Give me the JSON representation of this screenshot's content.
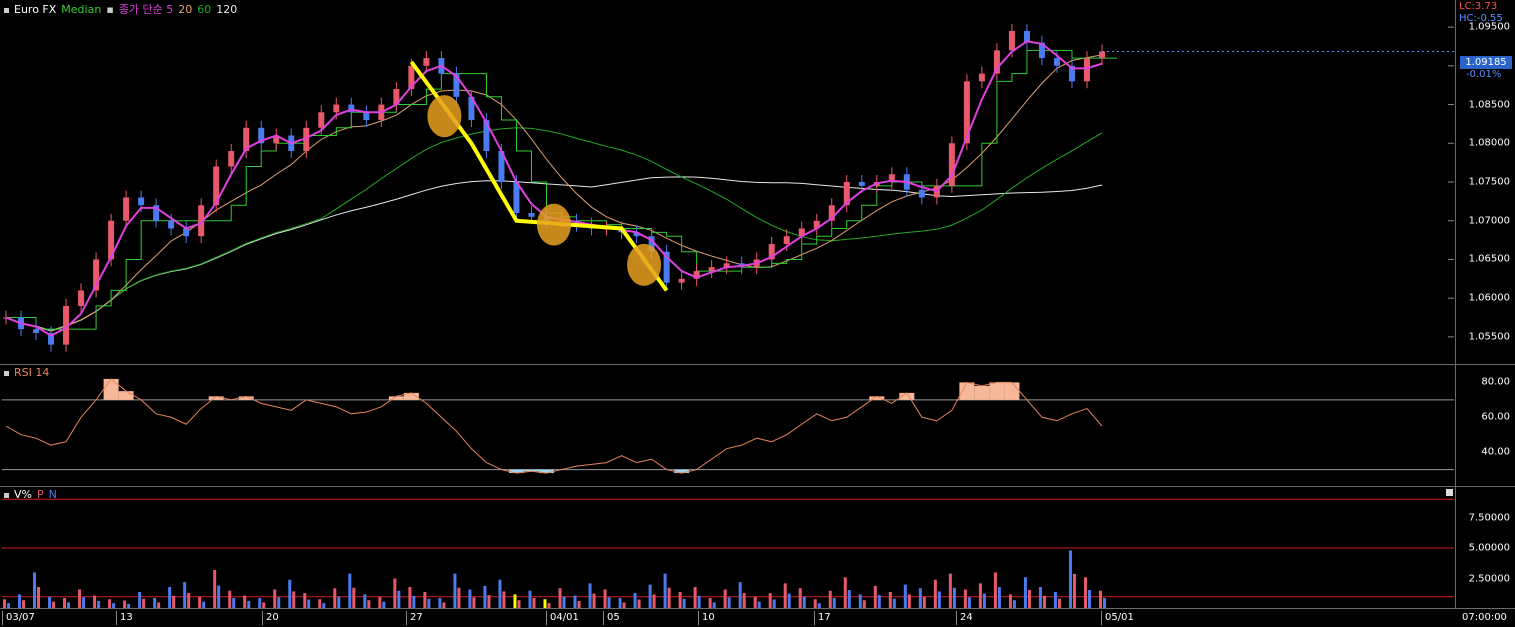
{
  "main": {
    "legend": {
      "symbol": "Euro FX",
      "median_label": "Median",
      "ma_label": "종가 단순 5",
      "ma20": "20",
      "ma60": "60",
      "ma120": "120"
    },
    "lc_label": "LC:3.73",
    "hc_label": "HC:-0.55",
    "current_price": "1.09185",
    "current_change": "-0.01%",
    "y_ticks": [
      "1.09500",
      "1.09000",
      "1.08500",
      "1.08000",
      "1.07500",
      "1.07000",
      "1.06500",
      "1.06000",
      "1.05500"
    ]
  },
  "rsi": {
    "label": "RSI 14",
    "y_ticks": [
      "80.00",
      "60.00",
      "40.00"
    ]
  },
  "volume": {
    "label": "V%",
    "p_label": "P",
    "n_label": "N",
    "y_ticks": [
      "7.50000",
      "5.00000",
      "2.50000"
    ]
  },
  "x_axis": {
    "labels": [
      "03/07",
      "13",
      "20",
      "27",
      "04/01",
      "05",
      "10",
      "17",
      "24",
      "05/01"
    ],
    "time_label": "07:00:00"
  },
  "colors": {
    "up": "#e8596b",
    "down": "#4a7cf0",
    "ma5": "#e040e0",
    "ma20": "#e0a070",
    "ma60": "#22aa22",
    "ma120": "#e8e8e8",
    "median": "#33cc33",
    "rsi": "#e8845a",
    "annotation": "#ffff00",
    "highlight": "#e8a020"
  },
  "chart_data": {
    "type": "candlestick",
    "x_range": [
      "03/07",
      "05/01"
    ],
    "price_axis_range": [
      1.0515,
      1.0985
    ],
    "price_series": {
      "name": "Euro FX",
      "close_approx": [
        1.0575,
        1.056,
        1.0555,
        1.054,
        1.059,
        1.061,
        1.065,
        1.07,
        1.073,
        1.072,
        1.07,
        1.069,
        1.068,
        1.072,
        1.077,
        1.079,
        1.082,
        1.08,
        1.081,
        1.079,
        1.082,
        1.084,
        1.085,
        1.084,
        1.083,
        1.085,
        1.087,
        1.09,
        1.091,
        1.089,
        1.086,
        1.083,
        1.079,
        1.075,
        1.071,
        1.0705,
        1.07,
        1.07,
        1.0695,
        1.069,
        1.069,
        1.0685,
        1.068,
        1.066,
        1.062,
        1.0625,
        1.0635,
        1.064,
        1.0645,
        1.064,
        1.065,
        1.067,
        1.068,
        1.069,
        1.07,
        1.072,
        1.075,
        1.0745,
        1.075,
        1.076,
        1.074,
        1.073,
        1.0745,
        1.08,
        1.088,
        1.089,
        1.092,
        1.0945,
        1.093,
        1.091,
        1.09,
        1.088,
        1.091,
        1.09185
      ]
    },
    "rsi_series": {
      "name": "RSI 14",
      "axis_range": [
        20,
        90
      ],
      "bands": [
        70,
        30
      ],
      "values_approx": [
        55,
        50,
        48,
        44,
        46,
        60,
        70,
        82,
        75,
        70,
        62,
        60,
        56,
        65,
        72,
        70,
        72,
        68,
        66,
        64,
        70,
        68,
        66,
        62,
        63,
        66,
        72,
        74,
        68,
        60,
        52,
        42,
        34,
        30,
        28,
        29,
        28,
        30,
        32,
        33,
        34,
        38,
        34,
        36,
        30,
        28,
        30,
        36,
        42,
        44,
        48,
        46,
        50,
        56,
        62,
        58,
        60,
        66,
        72,
        68,
        74,
        60,
        58,
        64,
        80,
        78,
        80,
        80,
        70,
        60,
        58,
        62,
        65,
        55
      ]
    },
    "volume_series": {
      "name": "V%",
      "axis_range": [
        0,
        10
      ],
      "reference_lines": [
        9.0,
        5.0,
        1.0
      ],
      "values_approx": [
        0.8,
        1.2,
        3.0,
        1.0,
        0.9,
        1.6,
        1.1,
        0.8,
        0.7,
        1.4,
        0.9,
        1.8,
        2.2,
        1.0,
        3.2,
        1.5,
        1.1,
        0.9,
        1.6,
        2.4,
        1.3,
        0.8,
        1.7,
        2.9,
        1.2,
        1.0,
        2.5,
        1.8,
        1.4,
        0.9,
        2.9,
        1.6,
        1.9,
        2.4,
        1.2,
        1.5,
        0.8,
        1.7,
        1.1,
        2.1,
        1.6,
        0.9,
        1.3,
        2.0,
        2.9,
        1.4,
        1.8,
        0.9,
        1.6,
        2.2,
        1.0,
        1.3,
        2.1,
        1.7,
        0.8,
        1.5,
        2.6,
        1.2,
        1.9,
        1.4,
        2.0,
        1.7,
        2.4,
        2.9,
        1.6,
        2.1,
        3.0,
        1.2,
        2.6,
        1.8,
        1.4,
        4.8,
        2.6,
        1.5
      ]
    }
  }
}
